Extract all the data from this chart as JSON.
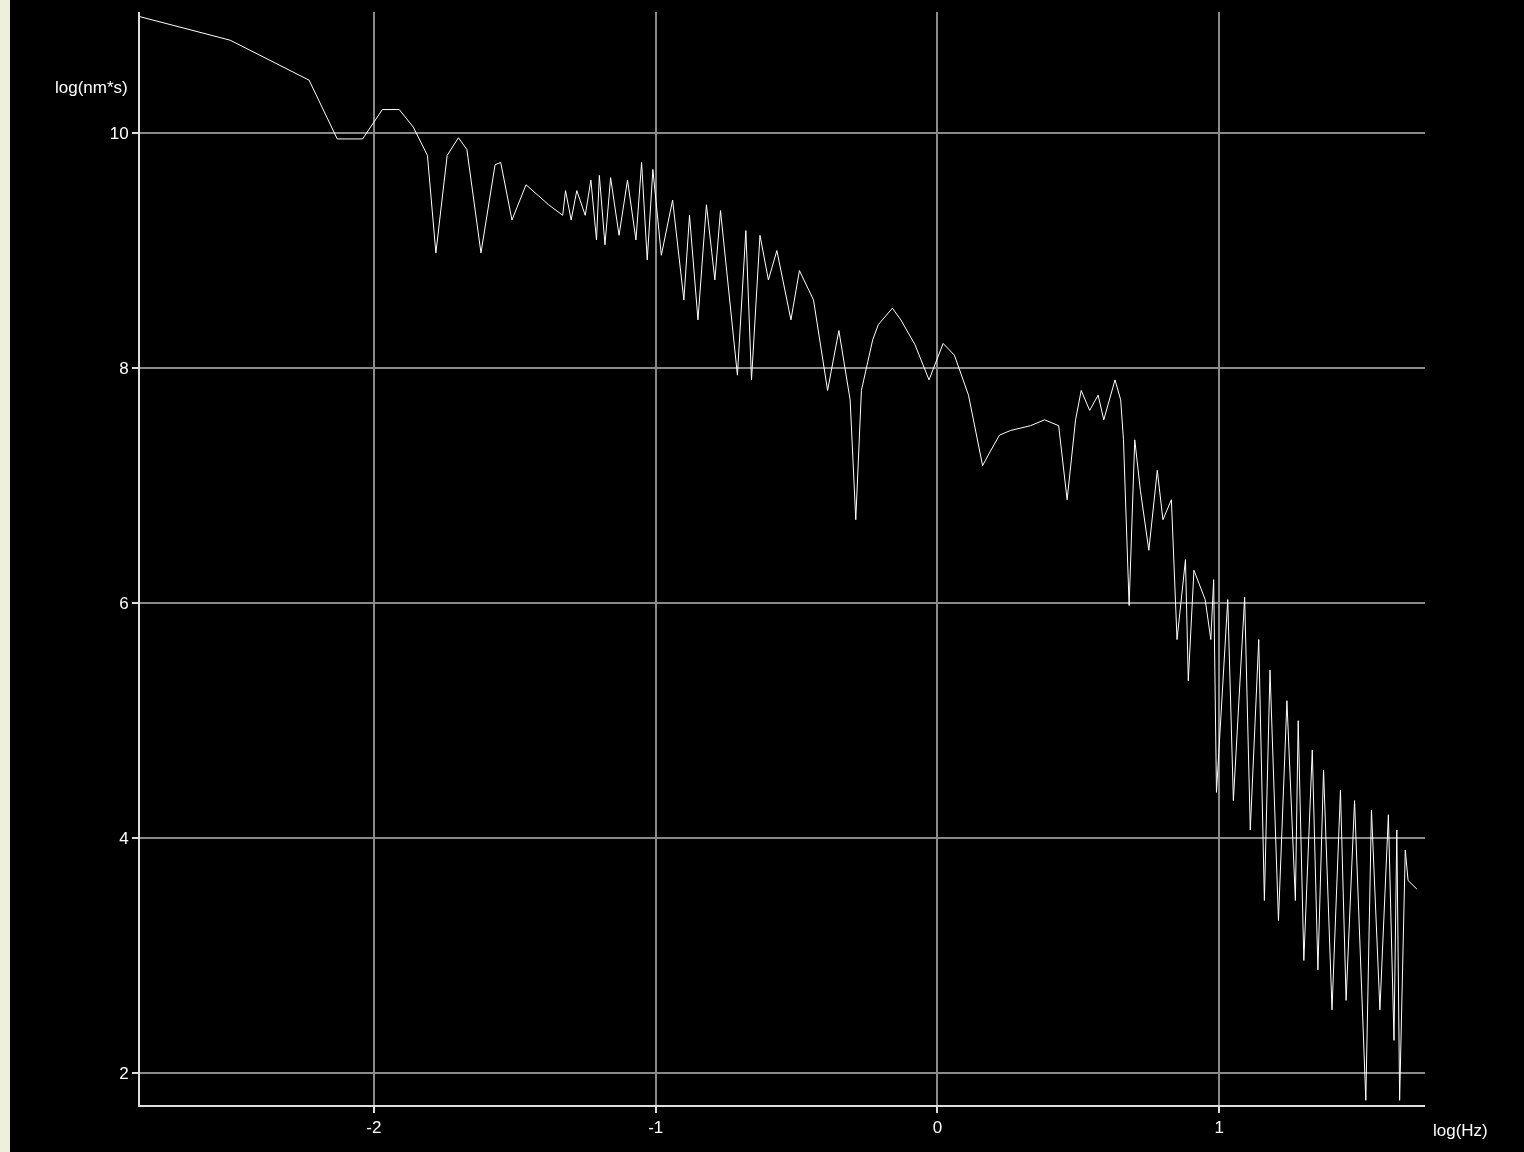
{
  "chart_data": {
    "type": "line",
    "xlabel": "log(Hz)",
    "ylabel": "log(nm*s)",
    "xlim": [
      -2.83,
      1.73
    ],
    "xticks": [
      -2,
      -1,
      0,
      1
    ],
    "ylim": [
      1.73,
      11.03
    ],
    "yticks": [
      2,
      4,
      6,
      8,
      10
    ],
    "grid": true,
    "marker": "none",
    "line_style": "solid",
    "series": [
      {
        "color": "#ffffff",
        "x": [
          -2.83,
          -2.51,
          -2.23,
          -2.13,
          -2.04,
          -1.97,
          -1.91,
          -1.86,
          -1.81,
          -1.78,
          -1.74,
          -1.7,
          -1.67,
          -1.62,
          -1.57,
          -1.55,
          -1.51,
          -1.46,
          -1.38,
          -1.33,
          -1.32,
          -1.3,
          -1.28,
          -1.25,
          -1.23,
          -1.21,
          -1.2,
          -1.18,
          -1.16,
          -1.13,
          -1.1,
          -1.07,
          -1.05,
          -1.03,
          -1.01,
          -0.98,
          -0.94,
          -0.9,
          -0.88,
          -0.85,
          -0.82,
          -0.79,
          -0.77,
          -0.71,
          -0.68,
          -0.66,
          -0.63,
          -0.6,
          -0.57,
          -0.52,
          -0.49,
          -0.44,
          -0.39,
          -0.35,
          -0.31,
          -0.29,
          -0.27,
          -0.23,
          -0.21,
          -0.16,
          -0.13,
          -0.08,
          -0.03,
          0.02,
          0.06,
          0.11,
          0.16,
          0.18,
          0.22,
          0.26,
          0.33,
          0.38,
          0.43,
          0.46,
          0.49,
          0.51,
          0.54,
          0.57,
          0.59,
          0.63,
          0.65,
          0.66,
          0.68,
          0.7,
          0.72,
          0.75,
          0.78,
          0.8,
          0.83,
          0.85,
          0.88,
          0.89,
          0.91,
          0.95,
          0.97,
          0.98,
          0.99,
          1.03,
          1.05,
          1.09,
          1.11,
          1.14,
          1.16,
          1.18,
          1.21,
          1.24,
          1.27,
          1.28,
          1.3,
          1.33,
          1.35,
          1.37,
          1.4,
          1.43,
          1.45,
          1.48,
          1.52,
          1.54,
          1.57,
          1.6,
          1.62,
          1.63,
          1.64,
          1.66,
          1.67,
          1.7
        ],
        "values": [
          10.99,
          10.79,
          10.45,
          9.95,
          9.95,
          10.2,
          10.2,
          10.05,
          9.81,
          8.98,
          9.81,
          9.96,
          9.86,
          8.98,
          9.73,
          9.75,
          9.26,
          9.56,
          9.39,
          9.3,
          9.51,
          9.26,
          9.51,
          9.3,
          9.6,
          9.09,
          9.64,
          9.05,
          9.62,
          9.13,
          9.6,
          9.09,
          9.75,
          8.92,
          9.69,
          8.96,
          9.43,
          8.58,
          9.3,
          8.41,
          9.39,
          8.75,
          9.34,
          7.94,
          9.17,
          7.9,
          9.13,
          8.75,
          9.0,
          8.41,
          8.83,
          8.58,
          7.81,
          8.32,
          7.73,
          6.71,
          7.81,
          8.24,
          8.37,
          8.51,
          8.41,
          8.2,
          7.9,
          8.21,
          8.11,
          7.77,
          7.17,
          7.26,
          7.43,
          7.47,
          7.51,
          7.56,
          7.51,
          6.88,
          7.56,
          7.81,
          7.64,
          7.77,
          7.56,
          7.9,
          7.73,
          7.39,
          5.98,
          7.39,
          6.96,
          6.45,
          7.13,
          6.71,
          6.88,
          5.69,
          6.37,
          5.34,
          6.28,
          6.03,
          5.69,
          6.2,
          4.39,
          6.03,
          4.32,
          6.05,
          4.07,
          5.69,
          3.47,
          5.43,
          3.3,
          5.17,
          3.47,
          5.0,
          2.96,
          4.75,
          2.88,
          4.58,
          2.54,
          4.41,
          2.62,
          4.32,
          1.77,
          4.24,
          2.54,
          4.2,
          2.28,
          4.07,
          1.77,
          3.9,
          3.64,
          3.57
        ]
      }
    ]
  }
}
